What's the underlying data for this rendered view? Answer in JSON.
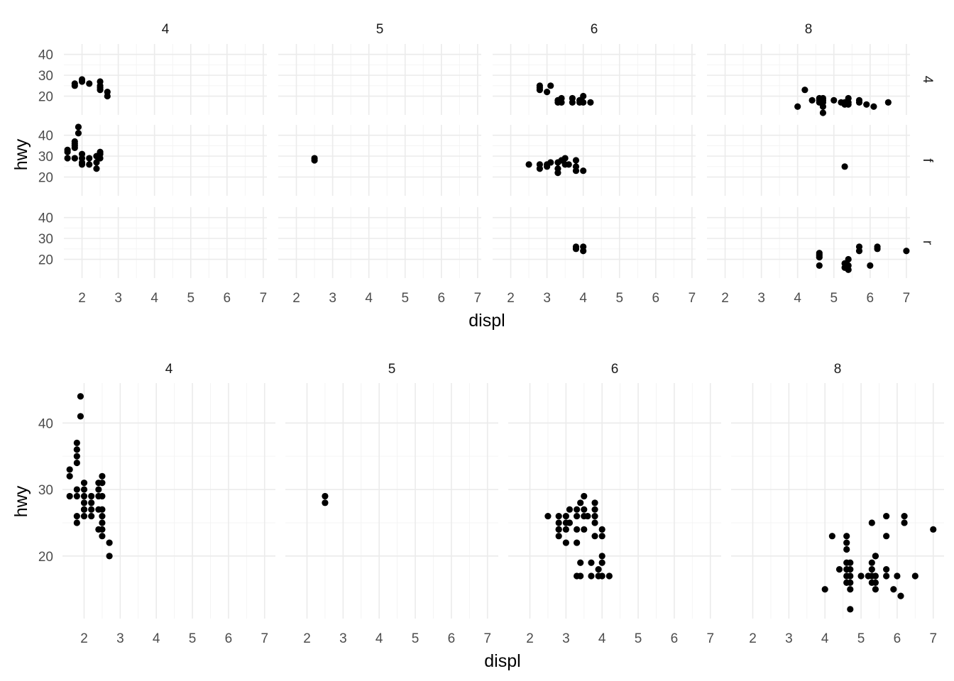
{
  "chart_data": [
    {
      "type": "scatter",
      "facet": "grid",
      "xlabel": "displ",
      "ylabel": "hwy",
      "col_strips": [
        "4",
        "5",
        "6",
        "8"
      ],
      "row_strips": [
        "4",
        "f",
        "r"
      ],
      "x_ticks": [
        "2",
        "3",
        "4",
        "5",
        "6",
        "7"
      ],
      "y_ticks": [
        "20",
        "30",
        "40"
      ],
      "xlim": [
        1.5,
        7.1
      ],
      "ylim": [
        11,
        45
      ],
      "grid": true,
      "points": [
        {
          "col": 0,
          "row": 0,
          "x": [
            1.8,
            1.8,
            2.0,
            2.0,
            2.2,
            2.5,
            2.5,
            2.5,
            2.5,
            2.7,
            2.7
          ],
          "y": [
            26,
            25,
            28,
            27,
            26,
            25,
            27,
            23,
            24,
            20,
            22
          ]
        },
        {
          "col": 2,
          "row": 0,
          "x": [
            2.8,
            2.8,
            2.8,
            3.0,
            3.1,
            3.3,
            3.3,
            3.4,
            3.4,
            3.7,
            3.7,
            3.9,
            3.9,
            4.0,
            4.0,
            4.2
          ],
          "y": [
            24,
            23,
            25,
            22,
            25,
            17,
            18,
            17,
            19,
            17,
            19,
            17,
            18,
            17,
            20,
            17
          ]
        },
        {
          "col": 3,
          "row": 0,
          "x": [
            4.0,
            4.2,
            4.4,
            4.6,
            4.6,
            4.6,
            4.7,
            4.7,
            4.7,
            4.7,
            4.7,
            5.0,
            5.2,
            5.3,
            5.3,
            5.4,
            5.4,
            5.4,
            5.7,
            5.7,
            5.9,
            6.1,
            6.5
          ],
          "y": [
            15,
            23,
            18,
            18,
            17,
            19,
            15,
            17,
            18,
            19,
            12,
            18,
            17,
            16,
            17,
            17,
            19,
            16,
            17,
            18,
            16,
            15,
            17
          ]
        },
        {
          "col": 0,
          "row": 1,
          "x": [
            1.6,
            1.6,
            1.6,
            1.8,
            1.8,
            1.8,
            1.8,
            1.8,
            1.8,
            1.9,
            1.9,
            2.0,
            2.0,
            2.0,
            2.0,
            2.2,
            2.2,
            2.4,
            2.4,
            2.4,
            2.5,
            2.5,
            2.5
          ],
          "y": [
            29,
            32,
            33,
            29,
            35,
            36,
            37,
            34,
            29,
            44,
            41,
            26,
            29,
            31,
            27,
            26,
            29,
            24,
            30,
            27,
            31,
            29,
            32
          ]
        },
        {
          "col": 1,
          "row": 1,
          "x": [
            2.5,
            2.5
          ],
          "y": [
            28,
            29
          ]
        },
        {
          "col": 2,
          "row": 1,
          "x": [
            2.5,
            2.8,
            2.8,
            3.0,
            3.0,
            3.1,
            3.3,
            3.3,
            3.3,
            3.4,
            3.5,
            3.5,
            3.6,
            3.8,
            3.8,
            3.8,
            4.0
          ],
          "y": [
            26,
            26,
            24,
            25,
            26,
            27,
            22,
            24,
            27,
            28,
            29,
            26,
            26,
            25,
            28,
            23,
            23
          ]
        },
        {
          "col": 3,
          "row": 1,
          "x": [
            5.3
          ],
          "y": [
            25
          ]
        },
        {
          "col": 2,
          "row": 2,
          "x": [
            3.8,
            3.8,
            4.0,
            4.0
          ],
          "y": [
            26,
            25,
            26,
            24
          ]
        },
        {
          "col": 3,
          "row": 2,
          "x": [
            4.6,
            4.6,
            4.6,
            4.6,
            5.3,
            5.3,
            5.4,
            5.4,
            5.4,
            5.7,
            5.7,
            6.0,
            6.2,
            6.2,
            7.0
          ],
          "y": [
            17,
            22,
            23,
            21,
            16,
            18,
            20,
            15,
            17,
            24,
            26,
            17,
            26,
            25,
            24
          ]
        }
      ]
    },
    {
      "type": "scatter",
      "facet": "wrap",
      "xlabel": "displ",
      "ylabel": "hwy",
      "col_strips": [
        "4",
        "5",
        "6",
        "8"
      ],
      "x_ticks": [
        "2",
        "3",
        "4",
        "5",
        "6",
        "7"
      ],
      "y_ticks": [
        "20",
        "30",
        "40"
      ],
      "xlim": [
        1.4,
        7.3
      ],
      "ylim": [
        10.6,
        46
      ],
      "grid": true,
      "points": [
        {
          "col": 0,
          "x": [
            1.6,
            1.6,
            1.6,
            1.8,
            1.8,
            1.8,
            1.8,
            1.8,
            1.8,
            1.8,
            1.8,
            1.9,
            1.9,
            2.0,
            2.0,
            2.0,
            2.0,
            2.0,
            2.0,
            2.0,
            2.2,
            2.2,
            2.2,
            2.2,
            2.4,
            2.4,
            2.4,
            2.4,
            2.4,
            2.5,
            2.5,
            2.5,
            2.5,
            2.5,
            2.5,
            2.5,
            2.5,
            2.7,
            2.7
          ],
          "y": [
            29,
            32,
            33,
            26,
            25,
            29,
            34,
            35,
            36,
            37,
            30,
            44,
            41,
            28,
            27,
            26,
            29,
            31,
            30,
            27,
            26,
            29,
            27,
            28,
            24,
            30,
            27,
            31,
            29,
            31,
            29,
            32,
            25,
            27,
            23,
            24,
            26,
            20,
            22
          ]
        },
        {
          "col": 1,
          "x": [
            2.5,
            2.5
          ],
          "y": [
            28,
            29
          ]
        },
        {
          "col": 2,
          "x": [
            2.5,
            2.8,
            2.8,
            2.8,
            2.8,
            2.8,
            3.0,
            3.0,
            3.0,
            3.0,
            3.1,
            3.1,
            3.3,
            3.3,
            3.3,
            3.3,
            3.3,
            3.4,
            3.4,
            3.4,
            3.5,
            3.5,
            3.5,
            3.5,
            3.6,
            3.7,
            3.7,
            3.8,
            3.8,
            3.8,
            3.8,
            3.8,
            3.9,
            3.9,
            4.0,
            4.0,
            4.0,
            4.0,
            4.0,
            4.2
          ],
          "y": [
            26,
            26,
            24,
            25,
            23,
            24,
            25,
            26,
            22,
            24,
            27,
            25,
            17,
            22,
            24,
            27,
            26,
            28,
            17,
            19,
            29,
            26,
            27,
            24,
            26,
            17,
            19,
            25,
            28,
            23,
            26,
            27,
            17,
            18,
            17,
            20,
            23,
            24,
            19,
            17
          ]
        },
        {
          "col": 3,
          "x": [
            4.0,
            4.2,
            4.4,
            4.6,
            4.6,
            4.6,
            4.6,
            4.6,
            4.6,
            4.6,
            4.7,
            4.7,
            4.7,
            4.7,
            4.7,
            4.7,
            5.0,
            5.2,
            5.3,
            5.3,
            5.3,
            5.3,
            5.3,
            5.4,
            5.4,
            5.4,
            5.4,
            5.4,
            5.7,
            5.7,
            5.7,
            5.7,
            5.9,
            6.0,
            6.1,
            6.2,
            6.2,
            6.5,
            7.0
          ],
          "y": [
            15,
            23,
            18,
            17,
            18,
            19,
            16,
            21,
            22,
            23,
            15,
            17,
            18,
            19,
            12,
            16,
            17,
            17,
            16,
            17,
            18,
            19,
            25,
            20,
            15,
            17,
            16,
            20,
            17,
            18,
            23,
            26,
            15,
            17,
            14,
            26,
            25,
            17,
            24
          ]
        }
      ]
    }
  ]
}
